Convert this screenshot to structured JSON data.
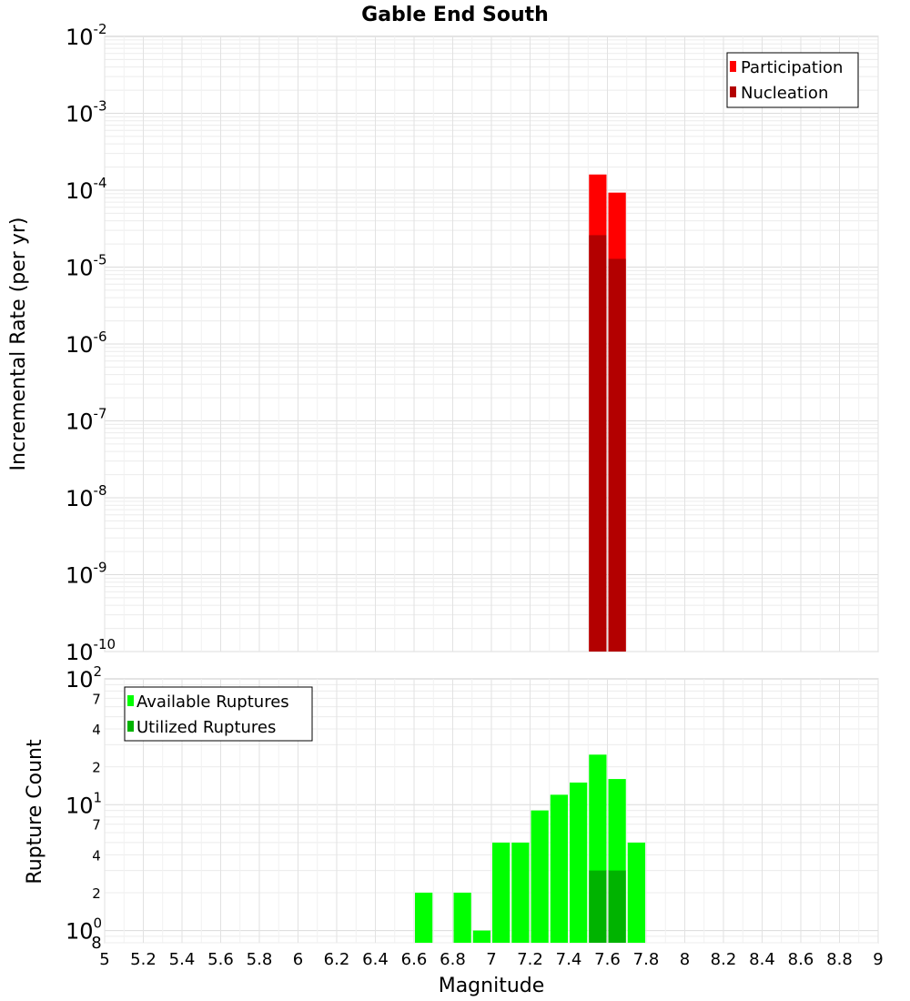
{
  "chart_data": [
    {
      "type": "bar",
      "title": "Gable End South",
      "xlabel": "",
      "ylabel": "Incremental Rate (per yr)",
      "yscale": "log",
      "ylim": [
        1e-10,
        0.01
      ],
      "xlim": [
        5,
        9
      ],
      "bin_width": 0.1,
      "y_ticks": [
        {
          "base": "10",
          "exp": "-10",
          "value": 1e-10
        },
        {
          "base": "10",
          "exp": "-9",
          "value": 1e-09
        },
        {
          "base": "10",
          "exp": "-8",
          "value": 1e-08
        },
        {
          "base": "10",
          "exp": "-7",
          "value": 1e-07
        },
        {
          "base": "10",
          "exp": "-6",
          "value": 1e-06
        },
        {
          "base": "10",
          "exp": "-5",
          "value": 1e-05
        },
        {
          "base": "10",
          "exp": "-4",
          "value": 0.0001
        },
        {
          "base": "10",
          "exp": "-3",
          "value": 0.001
        },
        {
          "base": "10",
          "exp": "-2",
          "value": 0.01
        }
      ],
      "legend": {
        "position": "top-right"
      },
      "series": [
        {
          "name": "Participation",
          "color": "#ff0000",
          "points": [
            {
              "x": 7.55,
              "y": 0.00016
            },
            {
              "x": 7.65,
              "y": 9.3e-05
            }
          ]
        },
        {
          "name": "Nucleation",
          "color": "#b30000",
          "points": [
            {
              "x": 7.55,
              "y": 2.6e-05
            },
            {
              "x": 7.65,
              "y": 1.28e-05
            }
          ]
        }
      ]
    },
    {
      "type": "bar",
      "title": "",
      "xlabel": "Magnitude",
      "ylabel": "Rupture Count",
      "yscale": "log",
      "ylim": [
        0.8,
        100
      ],
      "xlim": [
        5,
        9
      ],
      "bin_width": 0.1,
      "x_ticks": [
        "5",
        "5.2",
        "5.4",
        "5.6",
        "5.8",
        "6",
        "6.2",
        "6.4",
        "6.6",
        "6.8",
        "7",
        "7.2",
        "7.4",
        "7.6",
        "7.8",
        "8",
        "8.2",
        "8.4",
        "8.6",
        "8.8",
        "9"
      ],
      "y_major_ticks": [
        {
          "base": "10",
          "exp": "0",
          "value": 1
        },
        {
          "base": "10",
          "exp": "1",
          "value": 10
        },
        {
          "base": "10",
          "exp": "2",
          "value": 100
        }
      ],
      "y_minor_ticks": [
        {
          "label": "8",
          "value": 0.8
        },
        {
          "label": "2",
          "value": 2
        },
        {
          "label": "4",
          "value": 4
        },
        {
          "label": "7",
          "value": 7
        },
        {
          "label": "2",
          "value": 20
        },
        {
          "label": "4",
          "value": 40
        },
        {
          "label": "7",
          "value": 70
        }
      ],
      "legend": {
        "position": "top-left"
      },
      "series": [
        {
          "name": "Available Ruptures",
          "color": "#00ff00",
          "points": [
            {
              "x": 6.65,
              "y": 2
            },
            {
              "x": 6.85,
              "y": 2
            },
            {
              "x": 6.95,
              "y": 1
            },
            {
              "x": 7.05,
              "y": 5
            },
            {
              "x": 7.15,
              "y": 5
            },
            {
              "x": 7.25,
              "y": 9
            },
            {
              "x": 7.35,
              "y": 12
            },
            {
              "x": 7.45,
              "y": 15
            },
            {
              "x": 7.55,
              "y": 25
            },
            {
              "x": 7.65,
              "y": 16
            },
            {
              "x": 7.75,
              "y": 5
            }
          ]
        },
        {
          "name": "Utilized Ruptures",
          "color": "#00b300",
          "points": [
            {
              "x": 7.55,
              "y": 3
            },
            {
              "x": 7.65,
              "y": 3
            }
          ]
        }
      ]
    }
  ]
}
